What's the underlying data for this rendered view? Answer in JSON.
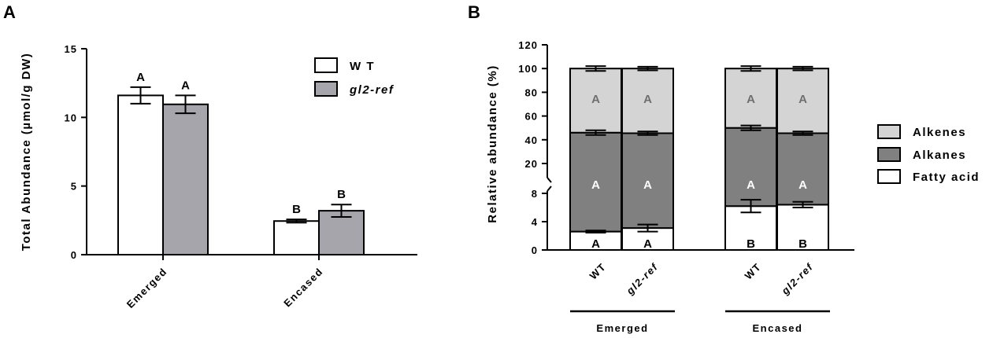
{
  "chart_data": [
    {
      "type": "bar",
      "panel_label": "A",
      "categories": [
        "Emerged",
        "Encased"
      ],
      "ylabel": "Total Abundance (µmol/g DW)",
      "ylim": [
        0,
        15
      ],
      "yticks": [
        "0",
        "5",
        "10",
        "15"
      ],
      "legend": {
        "position": "top-right",
        "entries": [
          "W T",
          "gl2-ref"
        ]
      },
      "series": [
        {
          "name": "WT",
          "color": "#ffffff",
          "values": [
            11.6,
            2.45
          ],
          "errors": [
            0.6,
            0.12
          ],
          "significance": [
            "A",
            "B"
          ]
        },
        {
          "name": "gl2-ref",
          "color": "#a6a5ab",
          "values": [
            10.95,
            3.2
          ],
          "errors": [
            0.65,
            0.45
          ],
          "significance": [
            "A",
            "B"
          ]
        }
      ]
    },
    {
      "type": "stacked bar",
      "panel_label": "B",
      "ylabel": "Relative abundance (%)",
      "y_axis_break": {
        "lower": [
          0,
          8
        ],
        "upper": [
          20,
          120
        ]
      },
      "yticks_lower": [
        "0",
        "4",
        "8"
      ],
      "yticks_upper": [
        "20",
        "40",
        "60",
        "80",
        "100",
        "120"
      ],
      "legend": {
        "position": "right",
        "entries": [
          "Alkenes",
          "Alkanes",
          "Fatty acid"
        ]
      },
      "groups": [
        {
          "label": "Emerged",
          "bars": [
            "WT",
            "gl2-ref"
          ]
        },
        {
          "label": "Encased",
          "bars": [
            "WT",
            "gl2-ref"
          ]
        }
      ],
      "bar_labels": [
        "WT",
        "gl2-ref",
        "WT",
        "gl2-ref"
      ],
      "colors": {
        "Fatty acid": "#ffffff",
        "Alkanes": "#808080",
        "Alkenes": "#d4d4d4"
      },
      "series": [
        {
          "name": "Fatty acid",
          "values": [
            2.6,
            3.1,
            6.2,
            6.4
          ],
          "errors": [
            0.15,
            0.5,
            0.9,
            0.4
          ],
          "significance": [
            "A",
            "A",
            "B",
            "B"
          ]
        },
        {
          "name": "Alkanes",
          "cumulative_top": [
            46,
            45.5,
            50,
            45.5
          ],
          "errors": [
            2,
            1.5,
            2,
            1.5
          ],
          "significance": [
            "A",
            "A",
            "A",
            "A"
          ]
        },
        {
          "name": "Alkenes",
          "cumulative_top": [
            100,
            100,
            100,
            100
          ],
          "errors": [
            2,
            1.5,
            2,
            1.5
          ],
          "significance": [
            "A",
            "A",
            "A",
            "A"
          ]
        }
      ]
    }
  ]
}
